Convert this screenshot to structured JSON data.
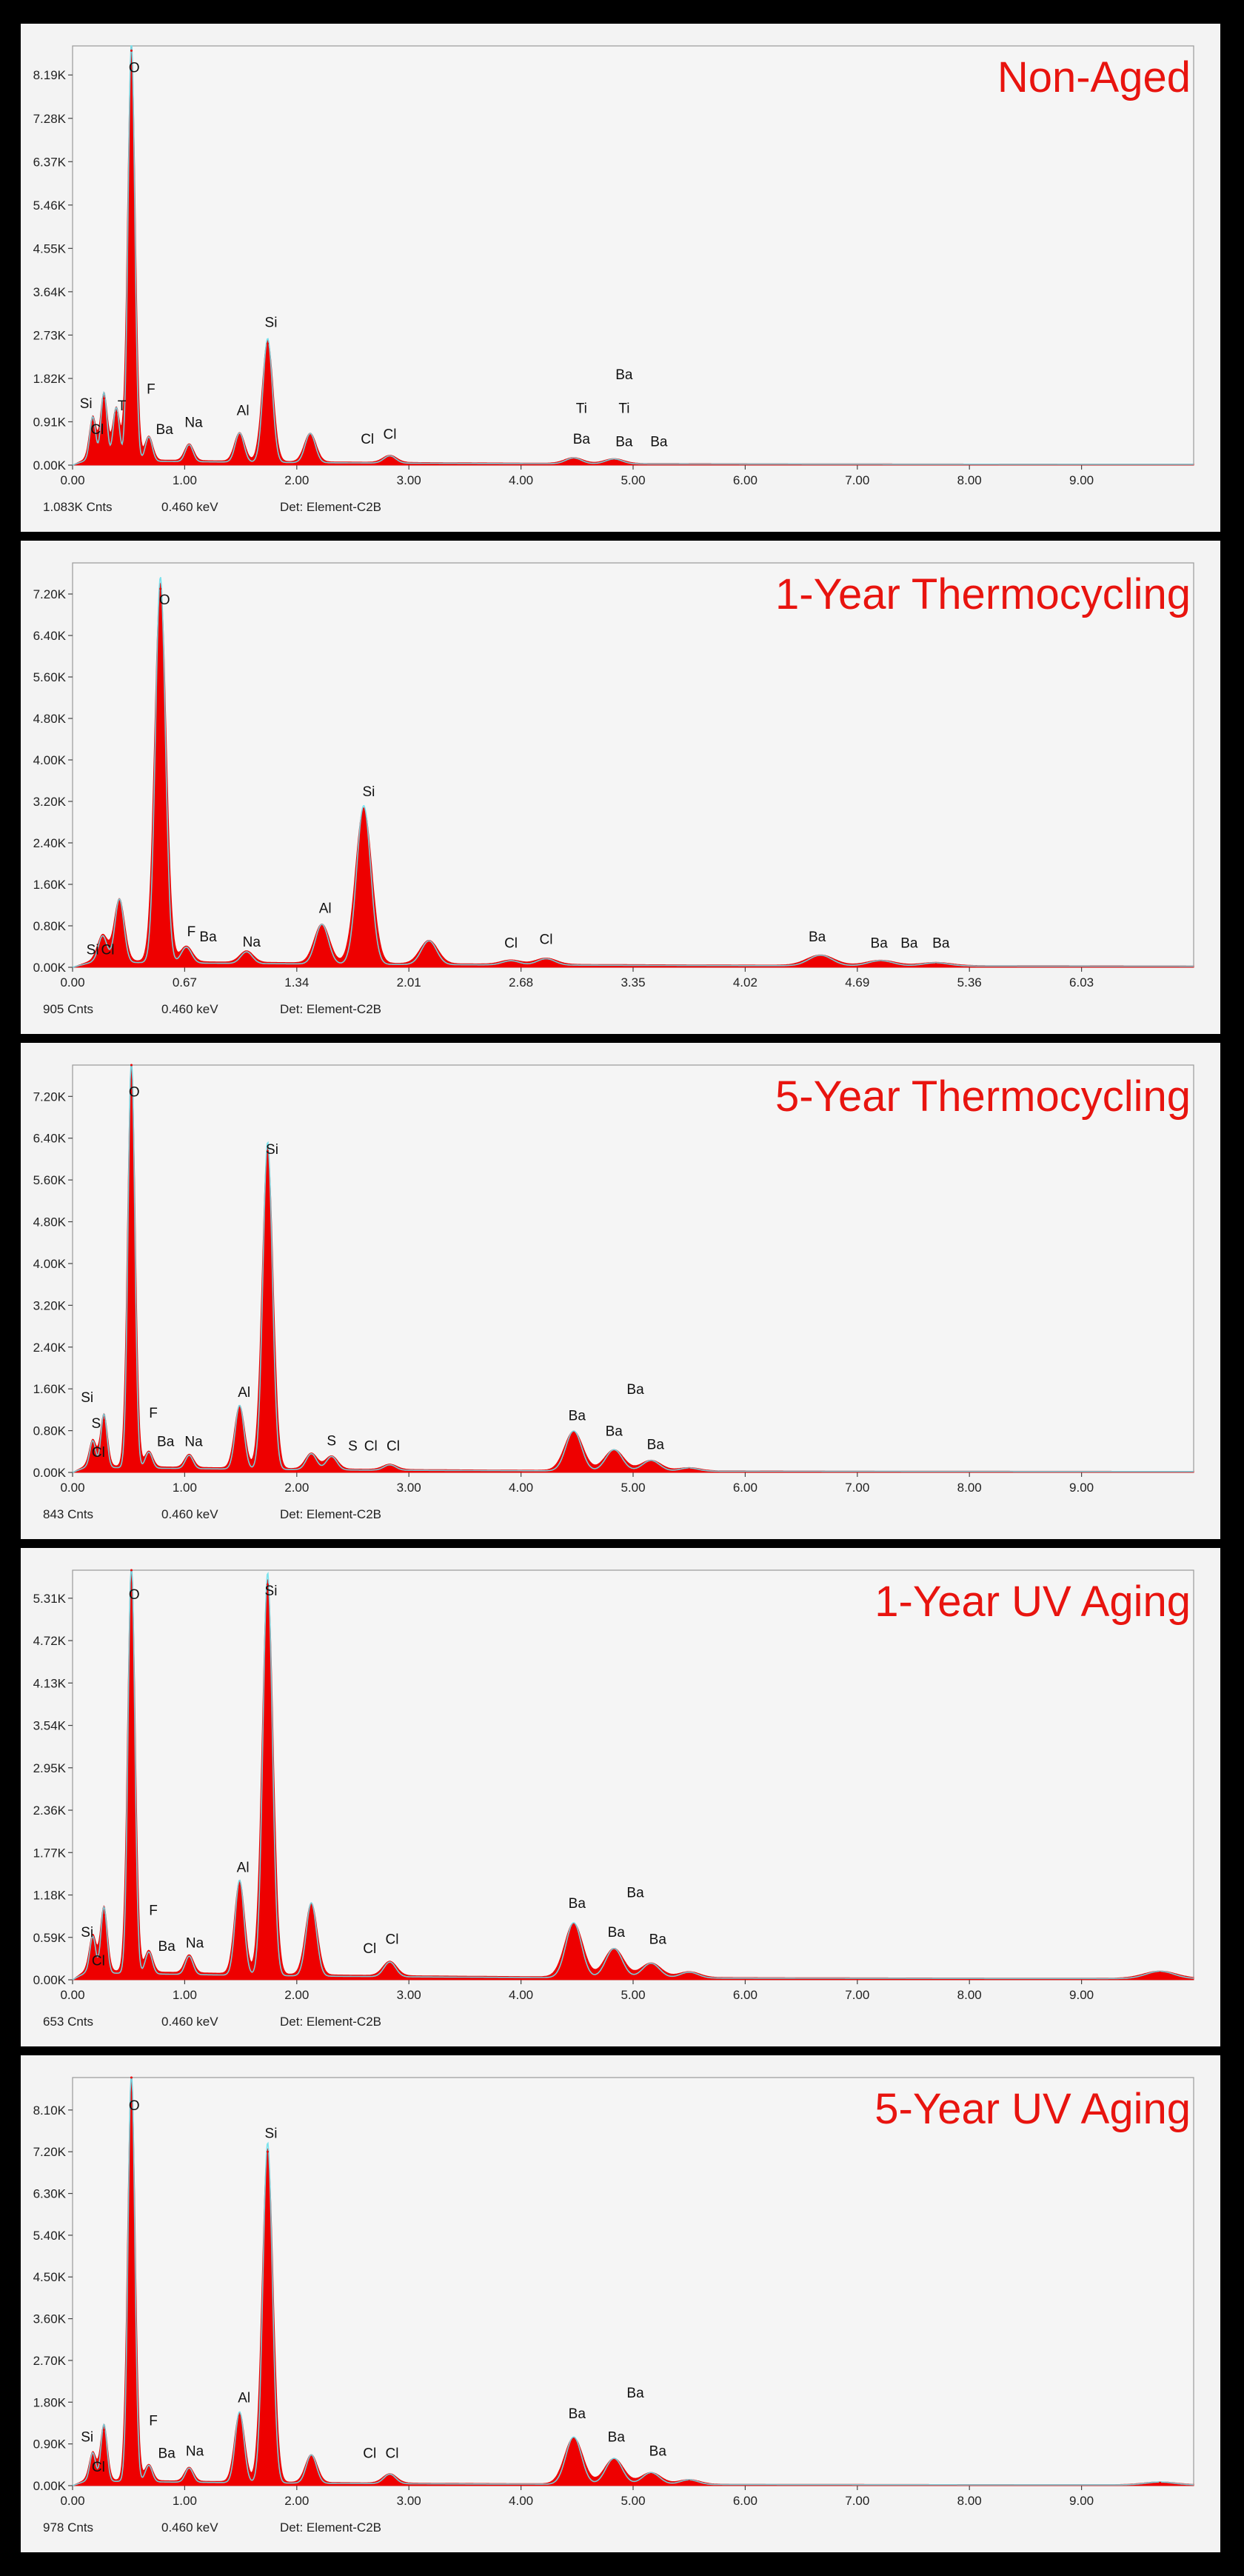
{
  "colors": {
    "frame": "#000000",
    "panel_bg": "#f3f3f3",
    "plot_bg": "#f5f5f5",
    "spectrum_fill": "#ee0000",
    "overlay_line": "#6ee0ec",
    "title_red": "#e8140f"
  },
  "chart_data": [
    {
      "type": "area",
      "title": "Non-Aged",
      "xticks": [
        "0.00",
        "1.00",
        "2.00",
        "3.00",
        "4.00",
        "5.00",
        "6.00",
        "7.00",
        "8.00",
        "9.00"
      ],
      "xlim": [
        0,
        10.0
      ],
      "yticks": [
        "0.00K",
        "0.91K",
        "1.82K",
        "2.73K",
        "3.64K",
        "4.55K",
        "5.46K",
        "6.37K",
        "7.28K",
        "8.19K"
      ],
      "ylim": [
        0,
        8.8
      ],
      "footer": {
        "counts": "1.083K Cnts",
        "energy": "0.460 keV",
        "detector": "Det: Element-C2B"
      },
      "peaks": [
        {
          "x": 0.18,
          "y": 0.9
        },
        {
          "x": 0.28,
          "y": 1.4
        },
        {
          "x": 0.39,
          "y": 1.1
        },
        {
          "x": 0.525,
          "y": 8.7
        },
        {
          "x": 0.68,
          "y": 0.5
        },
        {
          "x": 1.04,
          "y": 0.35
        },
        {
          "x": 1.49,
          "y": 0.6
        },
        {
          "x": 1.74,
          "y": 2.55
        },
        {
          "x": 2.12,
          "y": 0.6
        },
        {
          "x": 2.83,
          "y": 0.15
        },
        {
          "x": 4.47,
          "y": 0.12
        },
        {
          "x": 4.83,
          "y": 0.1
        }
      ],
      "labels": [
        {
          "text": "O",
          "x": 0.55,
          "y": 8.25
        },
        {
          "text": "Si",
          "x": 0.12,
          "y": 1.2
        },
        {
          "text": "Cl",
          "x": 0.22,
          "y": 0.65
        },
        {
          "text": "T",
          "x": 0.44,
          "y": 1.15
        },
        {
          "text": "F",
          "x": 0.7,
          "y": 1.5
        },
        {
          "text": "Ba",
          "x": 0.82,
          "y": 0.65
        },
        {
          "text": "Na",
          "x": 1.08,
          "y": 0.8
        },
        {
          "text": "Al",
          "x": 1.52,
          "y": 1.05
        },
        {
          "text": "Si",
          "x": 1.77,
          "y": 2.9
        },
        {
          "text": "Cl",
          "x": 2.63,
          "y": 0.45
        },
        {
          "text": "Cl",
          "x": 2.83,
          "y": 0.55
        },
        {
          "text": "Ti",
          "x": 4.54,
          "y": 1.1
        },
        {
          "text": "Ba",
          "x": 4.54,
          "y": 0.45
        },
        {
          "text": "Ba",
          "x": 4.92,
          "y": 1.8
        },
        {
          "text": "Ti",
          "x": 4.92,
          "y": 1.1
        },
        {
          "text": "Ba",
          "x": 4.92,
          "y": 0.4
        },
        {
          "text": "Ba",
          "x": 5.23,
          "y": 0.4
        }
      ]
    },
    {
      "type": "area",
      "title": "1-Year Thermocycling",
      "xticks": [
        "0.00",
        "0.67",
        "1.34",
        "2.01",
        "2.68",
        "3.35",
        "4.02",
        "4.69",
        "5.36",
        "6.03"
      ],
      "xlim": [
        0,
        6.7
      ],
      "yticks": [
        "0.00K",
        "0.80K",
        "1.60K",
        "2.40K",
        "3.20K",
        "4.00K",
        "4.80K",
        "5.60K",
        "6.40K",
        "7.20K"
      ],
      "ylim": [
        0,
        7.8
      ],
      "footer": {
        "counts": "905 Cnts",
        "energy": "0.460 keV",
        "detector": "Det: Element-C2B"
      },
      "peaks": [
        {
          "x": 0.18,
          "y": 0.5
        },
        {
          "x": 0.28,
          "y": 1.2
        },
        {
          "x": 0.525,
          "y": 7.3
        },
        {
          "x": 0.68,
          "y": 0.3
        },
        {
          "x": 1.04,
          "y": 0.22
        },
        {
          "x": 1.49,
          "y": 0.75
        },
        {
          "x": 1.74,
          "y": 3.0
        },
        {
          "x": 2.13,
          "y": 0.45
        },
        {
          "x": 2.62,
          "y": 0.08
        },
        {
          "x": 2.83,
          "y": 0.12
        },
        {
          "x": 4.47,
          "y": 0.2
        },
        {
          "x": 4.83,
          "y": 0.1
        },
        {
          "x": 5.16,
          "y": 0.06
        }
      ],
      "labels": [
        {
          "text": "O",
          "x": 0.55,
          "y": 7.0
        },
        {
          "text": "Si",
          "x": 0.12,
          "y": 0.25
        },
        {
          "text": "Cl",
          "x": 0.21,
          "y": 0.25
        },
        {
          "text": "F",
          "x": 0.71,
          "y": 0.6
        },
        {
          "text": "Ba",
          "x": 0.81,
          "y": 0.5
        },
        {
          "text": "Na",
          "x": 1.07,
          "y": 0.4
        },
        {
          "text": "Al",
          "x": 1.51,
          "y": 1.05
        },
        {
          "text": "Si",
          "x": 1.77,
          "y": 3.3
        },
        {
          "text": "Cl",
          "x": 2.62,
          "y": 0.38
        },
        {
          "text": "Cl",
          "x": 2.83,
          "y": 0.45
        },
        {
          "text": "Ba",
          "x": 4.45,
          "y": 0.5
        },
        {
          "text": "Ba",
          "x": 4.82,
          "y": 0.38
        },
        {
          "text": "Ba",
          "x": 5.0,
          "y": 0.38
        },
        {
          "text": "Ba",
          "x": 5.19,
          "y": 0.38
        }
      ]
    },
    {
      "type": "area",
      "title": "5-Year Thermocycling",
      "xticks": [
        "0.00",
        "1.00",
        "2.00",
        "3.00",
        "4.00",
        "5.00",
        "6.00",
        "7.00",
        "8.00",
        "9.00"
      ],
      "xlim": [
        0,
        10.0
      ],
      "yticks": [
        "0.00K",
        "0.80K",
        "1.60K",
        "2.40K",
        "3.20K",
        "4.00K",
        "4.80K",
        "5.60K",
        "6.40K",
        "7.20K"
      ],
      "ylim": [
        0,
        7.8
      ],
      "footer": {
        "counts": "843 Cnts",
        "energy": "0.460 keV",
        "detector": "Det: Element-C2B"
      },
      "peaks": [
        {
          "x": 0.18,
          "y": 0.5
        },
        {
          "x": 0.28,
          "y": 1.0
        },
        {
          "x": 0.525,
          "y": 7.8
        },
        {
          "x": 0.68,
          "y": 0.3
        },
        {
          "x": 1.04,
          "y": 0.25
        },
        {
          "x": 1.49,
          "y": 1.2
        },
        {
          "x": 1.74,
          "y": 6.15
        },
        {
          "x": 2.13,
          "y": 0.3
        },
        {
          "x": 2.31,
          "y": 0.25
        },
        {
          "x": 2.83,
          "y": 0.1
        },
        {
          "x": 4.47,
          "y": 0.75
        },
        {
          "x": 4.83,
          "y": 0.4
        },
        {
          "x": 5.16,
          "y": 0.2
        },
        {
          "x": 5.5,
          "y": 0.06
        }
      ],
      "labels": [
        {
          "text": "O",
          "x": 0.55,
          "y": 7.2
        },
        {
          "text": "Si",
          "x": 0.13,
          "y": 1.35
        },
        {
          "text": "S",
          "x": 0.21,
          "y": 0.85
        },
        {
          "text": "Cl",
          "x": 0.23,
          "y": 0.3
        },
        {
          "text": "F",
          "x": 0.72,
          "y": 1.05
        },
        {
          "text": "Ba",
          "x": 0.83,
          "y": 0.5
        },
        {
          "text": "Na",
          "x": 1.08,
          "y": 0.5
        },
        {
          "text": "Al",
          "x": 1.53,
          "y": 1.45
        },
        {
          "text": "Si",
          "x": 1.78,
          "y": 6.1
        },
        {
          "text": "S",
          "x": 2.31,
          "y": 0.52
        },
        {
          "text": "S",
          "x": 2.5,
          "y": 0.42
        },
        {
          "text": "Cl",
          "x": 2.66,
          "y": 0.42
        },
        {
          "text": "Cl",
          "x": 2.86,
          "y": 0.42
        },
        {
          "text": "Ba",
          "x": 4.5,
          "y": 1.0
        },
        {
          "text": "Ba",
          "x": 5.02,
          "y": 1.5
        },
        {
          "text": "Ba",
          "x": 4.83,
          "y": 0.7
        },
        {
          "text": "Ba",
          "x": 5.2,
          "y": 0.45
        }
      ]
    },
    {
      "type": "area",
      "title": "1-Year UV Aging",
      "xticks": [
        "0.00",
        "1.00",
        "2.00",
        "3.00",
        "4.00",
        "5.00",
        "6.00",
        "7.00",
        "8.00",
        "9.00"
      ],
      "xlim": [
        0,
        10.0
      ],
      "yticks": [
        "0.00K",
        "0.59K",
        "1.18K",
        "1.77K",
        "2.36K",
        "2.95K",
        "3.54K",
        "4.13K",
        "4.72K",
        "5.31K"
      ],
      "ylim": [
        0,
        5.7
      ],
      "footer": {
        "counts": "653 Cnts",
        "energy": "0.460 keV",
        "detector": "Det: Element-C2B"
      },
      "peaks": [
        {
          "x": 0.18,
          "y": 0.5
        },
        {
          "x": 0.28,
          "y": 0.9
        },
        {
          "x": 0.525,
          "y": 5.7
        },
        {
          "x": 0.68,
          "y": 0.3
        },
        {
          "x": 1.04,
          "y": 0.25
        },
        {
          "x": 1.49,
          "y": 1.3
        },
        {
          "x": 1.74,
          "y": 5.5
        },
        {
          "x": 2.13,
          "y": 1.0
        },
        {
          "x": 2.83,
          "y": 0.2
        },
        {
          "x": 4.47,
          "y": 0.75
        },
        {
          "x": 4.83,
          "y": 0.4
        },
        {
          "x": 5.16,
          "y": 0.2
        },
        {
          "x": 5.5,
          "y": 0.08
        },
        {
          "x": 9.7,
          "y": 0.1
        }
      ],
      "labels": [
        {
          "text": "O",
          "x": 0.55,
          "y": 5.3
        },
        {
          "text": "Si",
          "x": 0.13,
          "y": 0.6
        },
        {
          "text": "Cl",
          "x": 0.23,
          "y": 0.2
        },
        {
          "text": "F",
          "x": 0.72,
          "y": 0.9
        },
        {
          "text": "Ba",
          "x": 0.84,
          "y": 0.4
        },
        {
          "text": "Na",
          "x": 1.09,
          "y": 0.45
        },
        {
          "text": "Al",
          "x": 1.52,
          "y": 1.5
        },
        {
          "text": "Si",
          "x": 1.77,
          "y": 5.35
        },
        {
          "text": "Cl",
          "x": 2.65,
          "y": 0.37
        },
        {
          "text": "Cl",
          "x": 2.85,
          "y": 0.5
        },
        {
          "text": "Ba",
          "x": 4.5,
          "y": 1.0
        },
        {
          "text": "Ba",
          "x": 5.02,
          "y": 1.15
        },
        {
          "text": "Ba",
          "x": 4.85,
          "y": 0.6
        },
        {
          "text": "Ba",
          "x": 5.22,
          "y": 0.5
        }
      ]
    },
    {
      "type": "area",
      "title": "5-Year UV Aging",
      "xticks": [
        "0.00",
        "1.00",
        "2.00",
        "3.00",
        "4.00",
        "5.00",
        "6.00",
        "7.00",
        "8.00",
        "9.00"
      ],
      "xlim": [
        0,
        10.0
      ],
      "yticks": [
        "0.00K",
        "0.90K",
        "1.80K",
        "2.70K",
        "3.60K",
        "4.50K",
        "5.40K",
        "6.30K",
        "7.20K",
        "8.10K"
      ],
      "ylim": [
        0,
        8.8
      ],
      "footer": {
        "counts": "978 Cnts",
        "energy": "0.460 keV",
        "detector": "Det: Element-C2B"
      },
      "peaks": [
        {
          "x": 0.18,
          "y": 0.6
        },
        {
          "x": 0.28,
          "y": 1.2
        },
        {
          "x": 0.525,
          "y": 8.8
        },
        {
          "x": 0.68,
          "y": 0.35
        },
        {
          "x": 1.04,
          "y": 0.3
        },
        {
          "x": 1.49,
          "y": 1.5
        },
        {
          "x": 1.74,
          "y": 7.2
        },
        {
          "x": 2.13,
          "y": 0.6
        },
        {
          "x": 2.83,
          "y": 0.2
        },
        {
          "x": 4.47,
          "y": 1.0
        },
        {
          "x": 4.83,
          "y": 0.55
        },
        {
          "x": 5.16,
          "y": 0.25
        },
        {
          "x": 5.5,
          "y": 0.1
        },
        {
          "x": 9.7,
          "y": 0.06
        }
      ],
      "labels": [
        {
          "text": "O",
          "x": 0.55,
          "y": 8.1
        },
        {
          "text": "Si",
          "x": 0.13,
          "y": 0.95
        },
        {
          "text": "Cl",
          "x": 0.23,
          "y": 0.3
        },
        {
          "text": "F",
          "x": 0.72,
          "y": 1.3
        },
        {
          "text": "Ba",
          "x": 0.84,
          "y": 0.6
        },
        {
          "text": "Na",
          "x": 1.09,
          "y": 0.65
        },
        {
          "text": "Al",
          "x": 1.53,
          "y": 1.8
        },
        {
          "text": "Si",
          "x": 1.77,
          "y": 7.5
        },
        {
          "text": "Cl",
          "x": 2.65,
          "y": 0.6
        },
        {
          "text": "Cl",
          "x": 2.85,
          "y": 0.6
        },
        {
          "text": "Ba",
          "x": 4.5,
          "y": 1.45
        },
        {
          "text": "Ba",
          "x": 5.02,
          "y": 1.9
        },
        {
          "text": "Ba",
          "x": 4.85,
          "y": 0.95
        },
        {
          "text": "Ba",
          "x": 5.22,
          "y": 0.65
        }
      ]
    }
  ]
}
